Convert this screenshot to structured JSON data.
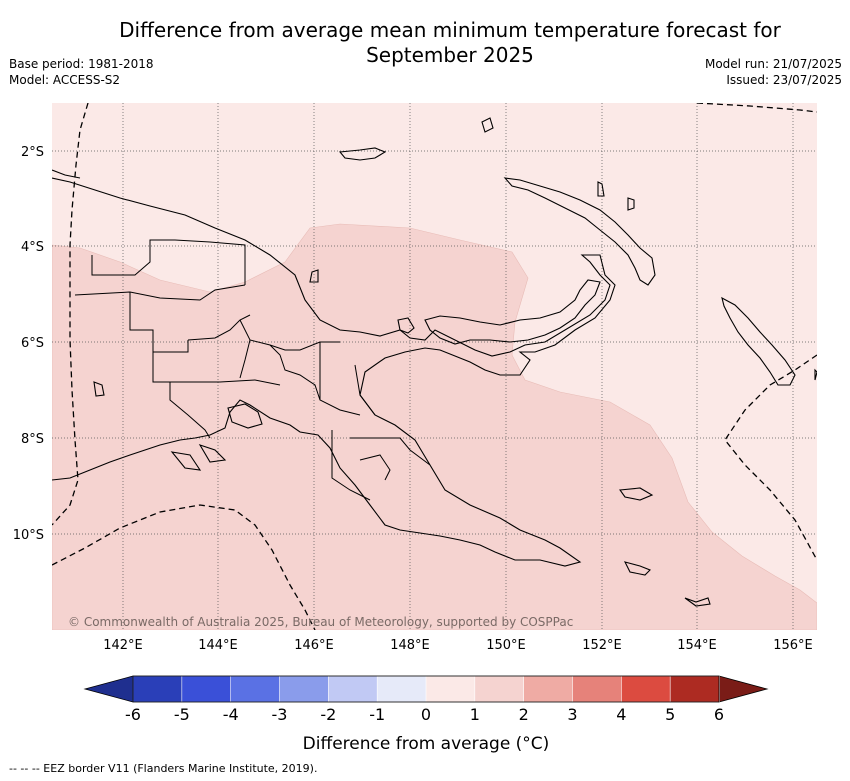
{
  "title_line1": "Difference from average mean minimum temperature forecast for",
  "title_line2": "September 2025",
  "meta": {
    "base_period": "Base period: 1981-2018",
    "model": "Model: ACCESS-S2",
    "model_run": "Model run: 21/07/2025",
    "issued": "Issued: 23/07/2025"
  },
  "map": {
    "lat_labels": [
      "2°S",
      "4°S",
      "6°S",
      "8°S",
      "10°S"
    ],
    "lon_labels": [
      "142°E",
      "144°E",
      "146°E",
      "148°E",
      "150°E",
      "152°E",
      "154°E",
      "156°E"
    ],
    "copyright": "© Commonwealth of Australia 2025, Bureau of Meteorology, supported by COSPPac"
  },
  "legend": {
    "ticks": [
      "-6",
      "-5",
      "-4",
      "-3",
      "-2",
      "-1",
      "0",
      "1",
      "2",
      "3",
      "4",
      "5",
      "6"
    ],
    "colors": [
      "#1f2f8f",
      "#2a3fb8",
      "#3a50d8",
      "#5a71e4",
      "#8a9ceb",
      "#c1c9f4",
      "#e6eaf9",
      "#fbe9e7",
      "#f5d3d0",
      "#efaba4",
      "#e6827a",
      "#dc4b40",
      "#ad2b22",
      "#7a1c17"
    ],
    "label": "Difference from average (°C)"
  },
  "footer": "--  --  -- EEZ border V11 (Flanders Marine Institute, 2019)."
}
